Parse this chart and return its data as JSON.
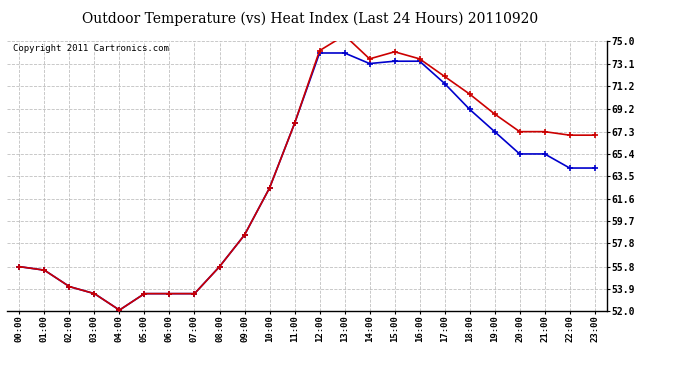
{
  "title": "Outdoor Temperature (vs) Heat Index (Last 24 Hours) 20110920",
  "copyright_text": "Copyright 2011 Cartronics.com",
  "hours": [
    "00:00",
    "01:00",
    "02:00",
    "03:00",
    "04:00",
    "05:00",
    "06:00",
    "07:00",
    "08:00",
    "09:00",
    "10:00",
    "11:00",
    "12:00",
    "13:00",
    "14:00",
    "15:00",
    "16:00",
    "17:00",
    "18:00",
    "19:00",
    "20:00",
    "21:00",
    "22:00",
    "23:00"
  ],
  "temp": [
    55.8,
    55.5,
    54.1,
    53.5,
    52.1,
    53.5,
    53.5,
    53.5,
    55.8,
    58.5,
    62.5,
    68.0,
    74.2,
    75.5,
    73.5,
    74.1,
    73.5,
    72.0,
    70.5,
    68.8,
    67.3,
    67.3,
    67.0,
    67.0
  ],
  "heat_index": [
    55.8,
    55.5,
    54.1,
    53.5,
    52.1,
    53.5,
    53.5,
    53.5,
    55.8,
    58.5,
    62.5,
    68.0,
    74.0,
    74.0,
    73.1,
    73.3,
    73.3,
    71.4,
    69.2,
    67.3,
    65.4,
    65.4,
    64.2,
    64.2
  ],
  "temp_color": "#cc0000",
  "heat_index_color": "#0000cc",
  "ylim": [
    52.0,
    75.0
  ],
  "yticks": [
    52.0,
    53.9,
    55.8,
    57.8,
    59.7,
    61.6,
    63.5,
    65.4,
    67.3,
    69.2,
    71.2,
    73.1,
    75.0
  ],
  "bg_color": "#ffffff",
  "plot_bg_color": "#ffffff",
  "grid_color": "#b0b0b0",
  "title_fontsize": 10,
  "copyright_fontsize": 6.5
}
